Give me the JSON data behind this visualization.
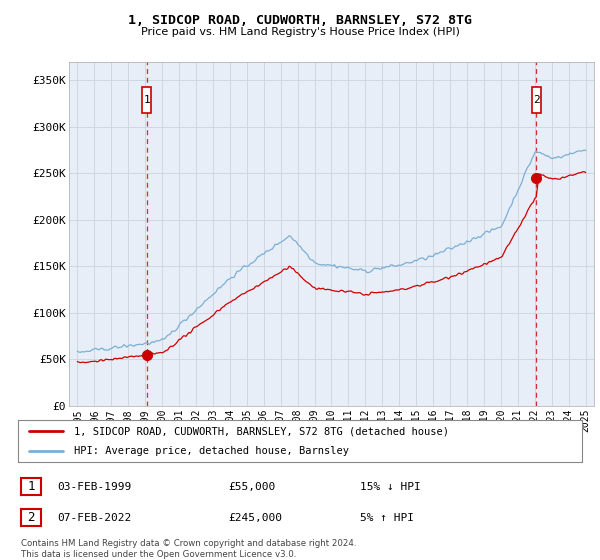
{
  "title": "1, SIDCOP ROAD, CUDWORTH, BARNSLEY, S72 8TG",
  "subtitle": "Price paid vs. HM Land Registry's House Price Index (HPI)",
  "ylabel_ticks": [
    "£0",
    "£50K",
    "£100K",
    "£150K",
    "£200K",
    "£250K",
    "£300K",
    "£350K"
  ],
  "ytick_vals": [
    0,
    50000,
    100000,
    150000,
    200000,
    250000,
    300000,
    350000
  ],
  "ylim": [
    0,
    370000
  ],
  "xlim_start": 1994.5,
  "xlim_end": 2025.5,
  "hpi_color": "#7bafd4",
  "price_color": "#cc0000",
  "plot_bg_color": "#e8eef7",
  "sale1_year": 1999.09,
  "sale1_price": 55000,
  "sale1_label": "1",
  "sale2_year": 2022.1,
  "sale2_price": 245000,
  "sale2_label": "2",
  "legend_line1": "1, SIDCOP ROAD, CUDWORTH, BARNSLEY, S72 8TG (detached house)",
  "legend_line2": "HPI: Average price, detached house, Barnsley",
  "table_rows": [
    {
      "num": "1",
      "date": "03-FEB-1999",
      "price": "£55,000",
      "hpi": "15% ↓ HPI"
    },
    {
      "num": "2",
      "date": "07-FEB-2022",
      "price": "£245,000",
      "hpi": "5% ↑ HPI"
    }
  ],
  "footnote": "Contains HM Land Registry data © Crown copyright and database right 2024.\nThis data is licensed under the Open Government Licence v3.0.",
  "background_color": "#ffffff",
  "grid_color": "#c8d4e0",
  "xtick_years": [
    1995,
    1996,
    1997,
    1998,
    1999,
    2000,
    2001,
    2002,
    2003,
    2004,
    2005,
    2006,
    2007,
    2008,
    2009,
    2010,
    2011,
    2012,
    2013,
    2014,
    2015,
    2016,
    2017,
    2018,
    2019,
    2020,
    2021,
    2022,
    2023,
    2024,
    2025
  ]
}
